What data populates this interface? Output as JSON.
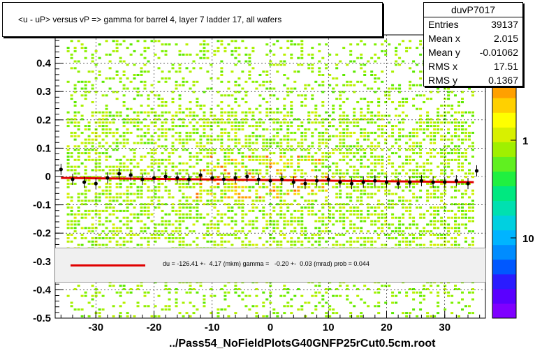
{
  "title": "<u - uP>       versus   vP =>  gamma for barrel 4, layer 7 ladder 17, all wafers",
  "stats": {
    "name": "duvP7017",
    "rows": [
      {
        "label": "Entries",
        "value": "39137"
      },
      {
        "label": "Mean x",
        "value": "2.015"
      },
      {
        "label": "Mean y",
        "value": "-0.01062"
      },
      {
        "label": "RMS x",
        "value": "17.51"
      },
      {
        "label": "RMS y",
        "value": "0.1367"
      }
    ]
  },
  "fit_text": "du = -126.41 +-  4.17 (mkm) gamma =   -0.20 +-  0.03 (mrad) prob = 0.044",
  "file_label": "../Pass54_NoFieldPlotsG40GNFP25rCut0.5cm.root",
  "colors": {
    "fit_line": "#e00000",
    "profile_points": "#000000",
    "fit_panel_bg": "#f0f0f0",
    "palette": [
      "#7f00ff",
      "#5a00ff",
      "#2a1cff",
      "#0058ff",
      "#008cff",
      "#00b4ff",
      "#00d0e0",
      "#00e0b0",
      "#00e880",
      "#20f040",
      "#60f020",
      "#a0f000",
      "#d8f000",
      "#ffff00",
      "#ffd000",
      "#ffa000",
      "#ff7000",
      "#ff3000",
      "#ff0000"
    ]
  },
  "chart_data": {
    "type": "heatmap",
    "title": "<u - uP>       versus   vP =>  gamma for barrel 4, layer 7 ladder 17, all wafers",
    "xlabel": "",
    "ylabel": "",
    "xlim": [
      -37,
      37
    ],
    "ylim": [
      -0.5,
      0.5
    ],
    "x_ticks": [
      -30,
      -20,
      -10,
      0,
      10,
      20,
      30
    ],
    "y_ticks": [
      -0.5,
      -0.4,
      -0.3,
      -0.2,
      -0.1,
      0,
      0.1,
      0.2,
      0.3,
      0.4
    ],
    "y_tick_labels": [
      "-0.5",
      "-0.4",
      "-0.3",
      "-0.2",
      "-0.1",
      "0",
      "0.1",
      "0.2",
      "0.3",
      "0.4"
    ],
    "grid": true,
    "z_scale": "log",
    "z_tick_labels": [
      "1",
      "10"
    ],
    "fit_line": {
      "x": [
        -36,
        35
      ],
      "y": [
        -0.005,
        -0.02
      ]
    },
    "profile": {
      "x": [
        -36,
        -34,
        -32,
        -30,
        -28,
        -26,
        -24,
        -22,
        -20,
        -18,
        -16,
        -14,
        -12,
        -10,
        -8,
        -6,
        -4,
        -2,
        0,
        2,
        4,
        6,
        8,
        10,
        12,
        14,
        16,
        18,
        20,
        22,
        24,
        26,
        28,
        30,
        32,
        34,
        35.5
      ],
      "y": [
        0.025,
        -0.01,
        -0.02,
        -0.025,
        -0.005,
        0.01,
        0.005,
        -0.01,
        -0.005,
        0.0,
        -0.005,
        -0.01,
        0.005,
        -0.005,
        -0.01,
        -0.005,
        0.0,
        -0.01,
        -0.015,
        -0.01,
        -0.02,
        -0.025,
        -0.015,
        -0.01,
        -0.02,
        -0.025,
        -0.02,
        -0.015,
        -0.02,
        -0.025,
        -0.02,
        -0.015,
        -0.02,
        -0.02,
        -0.015,
        -0.025,
        0.02
      ]
    }
  }
}
